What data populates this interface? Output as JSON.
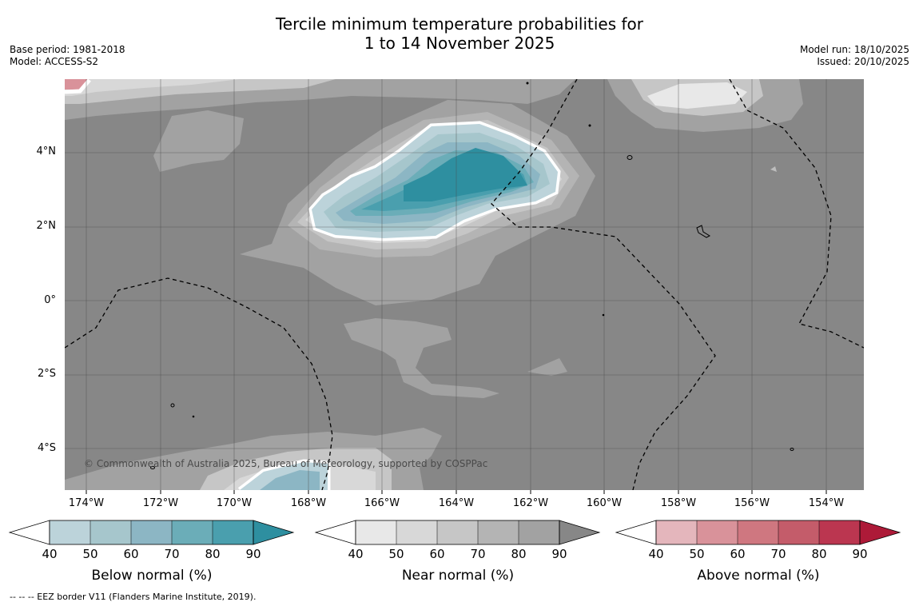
{
  "header": {
    "title_line1": "Tercile minimum temperature probabilities for",
    "title_line2": "1 to 14 November 2025",
    "base_period": "Base period: 1981-2018",
    "model": "Model: ACCESS-S2",
    "model_run": "Model run: 18/10/2025",
    "issued": "Issued: 20/10/2025"
  },
  "map": {
    "lat_labels": [
      "4°N",
      "2°N",
      "0°",
      "2°S",
      "4°S"
    ],
    "lon_labels": [
      "174°W",
      "172°W",
      "170°W",
      "168°W",
      "166°W",
      "164°W",
      "162°W",
      "160°W",
      "158°W",
      "156°W",
      "154°W"
    ],
    "copyright": "© Commonwealth of Australia 2025, Bureau of Meteorology, supported by COSPPac",
    "colors": {
      "background": "#878787",
      "below": [
        "#bcd3da",
        "#a6c6cc",
        "#8cb6c4",
        "#6badb8",
        "#4a9fae",
        "#2e8fa0"
      ],
      "near": [
        "#e8e8e8",
        "#d8d8d8",
        "#c6c6c6",
        "#b4b4b4",
        "#a2a2a2",
        "#878787"
      ],
      "above": [
        "#e4b6bc",
        "#d9929a",
        "#cf7780",
        "#c45c6a",
        "#bb3650",
        "#ad1a38"
      ]
    }
  },
  "colorbars": [
    {
      "label": "Below normal (%)",
      "ticks": [
        "40",
        "50",
        "60",
        "70",
        "80",
        "90"
      ]
    },
    {
      "label": "Near normal (%)",
      "ticks": [
        "40",
        "50",
        "60",
        "70",
        "80",
        "90"
      ]
    },
    {
      "label": "Above normal (%)",
      "ticks": [
        "40",
        "50",
        "60",
        "70",
        "80",
        "90"
      ]
    }
  ],
  "footer": {
    "legend_text": "--  --  -- EEZ border V11 (Flanders Marine Institute, 2019)."
  }
}
